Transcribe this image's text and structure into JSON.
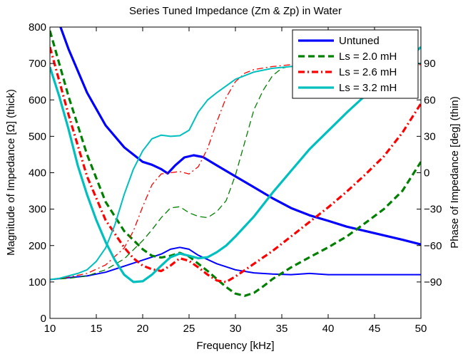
{
  "chart_data": {
    "type": "line",
    "title": "Series Tuned Impedance (Zm & Zp) in Water",
    "xlabel": "Frequency [kHz]",
    "ylabel_left": "Magnitude of Impedance [Ω] (thick)",
    "ylabel_right": "Phase of Impedance [deg] (thin)",
    "xlim": [
      10,
      50
    ],
    "ylim_left": [
      0,
      800
    ],
    "ylim_right": [
      -120,
      120
    ],
    "x_ticks": [
      10,
      15,
      20,
      25,
      30,
      35,
      40,
      45,
      50
    ],
    "y_ticks_left": [
      0,
      100,
      200,
      300,
      400,
      500,
      600,
      700,
      800
    ],
    "y_ticks_right": [
      -90,
      -60,
      -30,
      0,
      30,
      60,
      90
    ],
    "y_tick_labels_right": [
      "−90",
      "−60",
      "−30",
      "0",
      "30",
      "60",
      "90"
    ],
    "legend_position": "top-right",
    "grid": false,
    "series": [
      {
        "name": "Untuned",
        "color": "#0000ff",
        "dash": "solid",
        "magnitude": [
          [
            10,
            880
          ],
          [
            12,
            740
          ],
          [
            14,
            620
          ],
          [
            16,
            530
          ],
          [
            18,
            470
          ],
          [
            20,
            430
          ],
          [
            21,
            422
          ],
          [
            22,
            410
          ],
          [
            22.7,
            398
          ],
          [
            23.5,
            420
          ],
          [
            24.5,
            442
          ],
          [
            25.5,
            448
          ],
          [
            26.5,
            443
          ],
          [
            28,
            420
          ],
          [
            30,
            390
          ],
          [
            32,
            360
          ],
          [
            34,
            330
          ],
          [
            36,
            303
          ],
          [
            38,
            283
          ],
          [
            40,
            268
          ],
          [
            42,
            252
          ],
          [
            44,
            240
          ],
          [
            46,
            228
          ],
          [
            48,
            216
          ],
          [
            50,
            203
          ]
        ],
        "phase": [
          [
            10,
            -88
          ],
          [
            12,
            -86.5
          ],
          [
            14,
            -85
          ],
          [
            16,
            -82
          ],
          [
            18,
            -77
          ],
          [
            20,
            -72
          ],
          [
            22,
            -67
          ],
          [
            23,
            -63
          ],
          [
            24,
            -61.5
          ],
          [
            25,
            -63
          ],
          [
            26,
            -68
          ],
          [
            28,
            -75
          ],
          [
            30,
            -80
          ],
          [
            32,
            -82.5
          ],
          [
            34,
            -83.5
          ],
          [
            36,
            -84
          ],
          [
            38,
            -83
          ],
          [
            40,
            -84
          ],
          [
            44,
            -84
          ],
          [
            50,
            -84
          ]
        ]
      },
      {
        "name": "Ls = 2.0 mH",
        "color": "#008000",
        "dash": "dashed",
        "magnitude": [
          [
            10,
            790
          ],
          [
            12,
            610
          ],
          [
            14,
            450
          ],
          [
            16,
            320
          ],
          [
            18,
            240
          ],
          [
            20,
            190
          ],
          [
            21,
            172
          ],
          [
            22,
            167
          ],
          [
            23,
            172
          ],
          [
            24,
            180
          ],
          [
            25,
            170
          ],
          [
            26,
            150
          ],
          [
            27,
            130
          ],
          [
            28,
            108
          ],
          [
            29,
            86
          ],
          [
            30,
            68
          ],
          [
            31,
            62
          ],
          [
            32,
            70
          ],
          [
            33,
            88
          ],
          [
            34,
            108
          ],
          [
            36,
            140
          ],
          [
            38,
            168
          ],
          [
            40,
            195
          ],
          [
            42,
            225
          ],
          [
            44,
            262
          ],
          [
            46,
            300
          ],
          [
            48,
            350
          ],
          [
            50,
            430
          ]
        ],
        "phase": [
          [
            10,
            -88
          ],
          [
            12,
            -87
          ],
          [
            14,
            -85
          ],
          [
            16,
            -80
          ],
          [
            18,
            -71
          ],
          [
            20,
            -56
          ],
          [
            21,
            -47
          ],
          [
            22,
            -37
          ],
          [
            23,
            -29
          ],
          [
            24,
            -28
          ],
          [
            25,
            -33
          ],
          [
            26,
            -36
          ],
          [
            27,
            -37
          ],
          [
            28,
            -32
          ],
          [
            29,
            -23
          ],
          [
            30,
            -2
          ],
          [
            31,
            25
          ],
          [
            32,
            52
          ],
          [
            33,
            68
          ],
          [
            34,
            80
          ],
          [
            35,
            86
          ],
          [
            36,
            88
          ],
          [
            38,
            89
          ],
          [
            40,
            89
          ],
          [
            42,
            89
          ],
          [
            44,
            89
          ],
          [
            46,
            89
          ],
          [
            48,
            89
          ],
          [
            50,
            89
          ]
        ]
      },
      {
        "name": "Ls = 2.6 mH",
        "color": "#ff0000",
        "dash": "dashdot",
        "magnitude": [
          [
            10,
            745
          ],
          [
            12,
            560
          ],
          [
            14,
            390
          ],
          [
            16,
            270
          ],
          [
            18,
            195
          ],
          [
            19,
            165
          ],
          [
            20,
            145
          ],
          [
            21,
            135
          ],
          [
            22,
            130
          ],
          [
            23,
            145
          ],
          [
            24,
            165
          ],
          [
            25,
            158
          ],
          [
            26,
            140
          ],
          [
            27,
            120
          ],
          [
            28,
            104
          ],
          [
            29,
            100
          ],
          [
            30,
            115
          ],
          [
            32,
            150
          ],
          [
            34,
            185
          ],
          [
            36,
            225
          ],
          [
            38,
            265
          ],
          [
            40,
            305
          ],
          [
            42,
            348
          ],
          [
            44,
            395
          ],
          [
            46,
            445
          ],
          [
            48,
            510
          ],
          [
            50,
            590
          ]
        ],
        "phase": [
          [
            10,
            -88
          ],
          [
            12,
            -86
          ],
          [
            14,
            -83
          ],
          [
            16,
            -76
          ],
          [
            18,
            -62
          ],
          [
            19,
            -48
          ],
          [
            20,
            -28
          ],
          [
            21,
            -10
          ],
          [
            22,
            -1
          ],
          [
            23,
            0
          ],
          [
            24,
            1
          ],
          [
            25,
            -1
          ],
          [
            26,
            5
          ],
          [
            27,
            20
          ],
          [
            28,
            42
          ],
          [
            29,
            62
          ],
          [
            30,
            75
          ],
          [
            31,
            82
          ],
          [
            32,
            85
          ],
          [
            34,
            87.5
          ],
          [
            36,
            89
          ],
          [
            38,
            89
          ],
          [
            40,
            89
          ],
          [
            44,
            89
          ],
          [
            50,
            89
          ]
        ]
      },
      {
        "name": "Ls = 3.2 mH",
        "color": "#00bfbf",
        "dash": "solid",
        "magnitude": [
          [
            10,
            690
          ],
          [
            11,
            610
          ],
          [
            12,
            520
          ],
          [
            13,
            420
          ],
          [
            14,
            340
          ],
          [
            15,
            270
          ],
          [
            16,
            210
          ],
          [
            17,
            160
          ],
          [
            18,
            120
          ],
          [
            19,
            100
          ],
          [
            20,
            102
          ],
          [
            21,
            120
          ],
          [
            22,
            145
          ],
          [
            23,
            168
          ],
          [
            24,
            178
          ],
          [
            25,
            172
          ],
          [
            26,
            165
          ],
          [
            27,
            168
          ],
          [
            28,
            182
          ],
          [
            29,
            200
          ],
          [
            30,
            225
          ],
          [
            32,
            280
          ],
          [
            34,
            345
          ],
          [
            36,
            405
          ],
          [
            38,
            465
          ],
          [
            40,
            515
          ],
          [
            42,
            565
          ],
          [
            44,
            612
          ],
          [
            46,
            655
          ],
          [
            48,
            700
          ],
          [
            50,
            745
          ]
        ],
        "phase": [
          [
            10,
            -88
          ],
          [
            11,
            -87
          ],
          [
            12,
            -85
          ],
          [
            13,
            -83
          ],
          [
            14,
            -80
          ],
          [
            15,
            -73
          ],
          [
            16,
            -62
          ],
          [
            17,
            -43
          ],
          [
            18,
            -18
          ],
          [
            19,
            3
          ],
          [
            20,
            18
          ],
          [
            21,
            28
          ],
          [
            22,
            31
          ],
          [
            23,
            30
          ],
          [
            24,
            30.5
          ],
          [
            25,
            35
          ],
          [
            26,
            50
          ],
          [
            27,
            60
          ],
          [
            28,
            66
          ],
          [
            30,
            77
          ],
          [
            32,
            83
          ],
          [
            34,
            86
          ],
          [
            36,
            87.5
          ],
          [
            38,
            88.5
          ],
          [
            40,
            89.3
          ],
          [
            44,
            89.7
          ],
          [
            50,
            90
          ]
        ]
      }
    ]
  }
}
